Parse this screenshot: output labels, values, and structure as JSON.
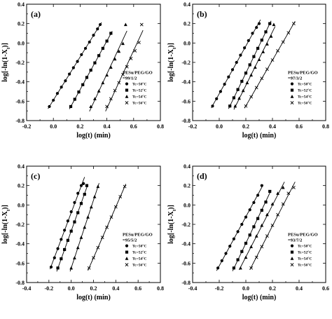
{
  "chart_data": [
    {
      "type": "line",
      "panel_label": "(a)",
      "xlabel": "log(t) (min)",
      "ylabel": "log[-ln(1-X_t)]",
      "xlim": [
        -0.2,
        0.8
      ],
      "ylim": [
        -0.8,
        0.4
      ],
      "xticks": [
        "-0.2",
        "0.0",
        "0.2",
        "0.4",
        "0.6",
        "0.8"
      ],
      "yticks": [
        "-0.8",
        "-0.6",
        "-0.4",
        "-0.2",
        "0.0",
        "0.2",
        "0.4"
      ],
      "legend": {
        "title_lines": [
          "PESu/PEG/GO",
          "=99/1/2"
        ],
        "placement": "right"
      },
      "series": [
        {
          "name": "Tc=50°C",
          "marker": "circle",
          "x": [
            -0.03,
            0.0,
            0.03,
            0.06,
            0.09,
            0.12,
            0.15,
            0.18,
            0.21,
            0.24,
            0.27,
            0.3,
            0.33,
            0.35
          ],
          "y": [
            -0.655,
            -0.59,
            -0.52,
            -0.455,
            -0.39,
            -0.32,
            -0.255,
            -0.19,
            -0.12,
            -0.055,
            0.01,
            0.08,
            0.145,
            0.19
          ]
        },
        {
          "name": "Tc=52°C",
          "marker": "square",
          "x": [
            0.13,
            0.16,
            0.19,
            0.22,
            0.25,
            0.28,
            0.31,
            0.34,
            0.37,
            0.4,
            0.43
          ],
          "y": [
            -0.655,
            -0.58,
            -0.505,
            -0.43,
            -0.355,
            -0.28,
            -0.205,
            -0.13,
            -0.055,
            0.02,
            0.1
          ]
        },
        {
          "name": "Tc=54°C",
          "marker": "triangle",
          "x": [
            0.28,
            0.31,
            0.34,
            0.37,
            0.4,
            0.43,
            0.46,
            0.49,
            0.52,
            0.54
          ],
          "y": [
            -0.655,
            -0.575,
            -0.495,
            -0.41,
            -0.33,
            -0.25,
            -0.165,
            -0.085,
            -0.005,
            0.19
          ]
        },
        {
          "name": "Tc=56°C",
          "marker": "cross",
          "x": [
            0.4,
            0.43,
            0.46,
            0.49,
            0.52,
            0.55,
            0.58,
            0.61,
            0.64,
            0.66
          ],
          "y": [
            -0.655,
            -0.575,
            -0.49,
            -0.41,
            -0.325,
            -0.245,
            -0.16,
            -0.08,
            0.005,
            0.19
          ]
        }
      ]
    },
    {
      "type": "line",
      "panel_label": "(b)",
      "xlabel": "log(t) (min)",
      "ylabel": "log[-ln(1-X_t)]",
      "xlim": [
        -0.2,
        0.8
      ],
      "ylim": [
        -0.8,
        0.4
      ],
      "xticks": [
        "-0.2",
        "0.0",
        "0.2",
        "0.4",
        "0.6",
        "0.8"
      ],
      "yticks": [
        "-0.8",
        "-0.6",
        "-0.4",
        "-0.2",
        "0.0",
        "0.2",
        "0.4"
      ],
      "legend": {
        "title_lines": [
          "PESu/PEG/GO",
          "=97/3/2"
        ],
        "placement": "right"
      },
      "series": [
        {
          "name": "Tc=50°C",
          "marker": "circle",
          "x": [
            -0.05,
            -0.02,
            0.01,
            0.04,
            0.07,
            0.1,
            0.13,
            0.16,
            0.19,
            0.22,
            0.25,
            0.28,
            0.3
          ],
          "y": [
            -0.65,
            -0.575,
            -0.5,
            -0.425,
            -0.35,
            -0.275,
            -0.2,
            -0.125,
            -0.05,
            0.025,
            0.1,
            0.16,
            0.2
          ]
        },
        {
          "name": "Tc=52°C",
          "marker": "square",
          "x": [
            0.08,
            0.11,
            0.14,
            0.17,
            0.2,
            0.23,
            0.26,
            0.29,
            0.32,
            0.35,
            0.38
          ],
          "y": [
            -0.65,
            -0.565,
            -0.48,
            -0.395,
            -0.31,
            -0.225,
            -0.14,
            -0.055,
            0.03,
            0.115,
            0.2
          ]
        },
        {
          "name": "Tc=54°C",
          "marker": "triangle",
          "x": [
            0.12,
            0.15,
            0.18,
            0.21,
            0.24,
            0.27,
            0.3,
            0.33,
            0.36,
            0.39,
            0.41
          ],
          "y": [
            -0.65,
            -0.57,
            -0.49,
            -0.41,
            -0.33,
            -0.25,
            -0.17,
            -0.09,
            -0.01,
            0.07,
            0.19
          ]
        },
        {
          "name": "Tc=56°C",
          "marker": "cross",
          "x": [
            0.2,
            0.24,
            0.28,
            0.32,
            0.36,
            0.4,
            0.44,
            0.48,
            0.52,
            0.56
          ],
          "y": [
            -0.65,
            -0.555,
            -0.46,
            -0.365,
            -0.27,
            -0.175,
            -0.08,
            0.01,
            0.105,
            0.2
          ]
        }
      ]
    },
    {
      "type": "line",
      "panel_label": "(c)",
      "xlabel": "log(t) (min)",
      "ylabel": "log[-ln(1-X_t)]",
      "xlim": [
        -0.4,
        0.8
      ],
      "ylim": [
        -0.8,
        0.4
      ],
      "xticks": [
        "-0.4",
        "-0.2",
        "0.0",
        "0.2",
        "0.4",
        "0.6",
        "0.8"
      ],
      "yticks": [
        "-0.8",
        "-0.6",
        "-0.4",
        "-0.2",
        "0.0",
        "0.2",
        "0.4"
      ],
      "legend": {
        "title_lines": [
          "PESu/PEG/GO",
          "=95/5/2"
        ],
        "placement": "right"
      },
      "series": [
        {
          "name": "Tc=50°C",
          "marker": "circle",
          "x": [
            -0.18,
            -0.15,
            -0.12,
            -0.09,
            -0.06,
            -0.03,
            0.0,
            0.03,
            0.06,
            0.09,
            0.11
          ],
          "y": [
            -0.64,
            -0.545,
            -0.45,
            -0.355,
            -0.26,
            -0.165,
            -0.07,
            0.025,
            0.12,
            0.2,
            0.22
          ]
        },
        {
          "name": "Tc=52°C",
          "marker": "square",
          "x": [
            -0.12,
            -0.09,
            -0.06,
            -0.03,
            0.0,
            0.03,
            0.06,
            0.09,
            0.12,
            0.14
          ],
          "y": [
            -0.65,
            -0.555,
            -0.46,
            -0.365,
            -0.27,
            -0.175,
            -0.08,
            0.015,
            0.11,
            0.2
          ]
        },
        {
          "name": "Tc=54°C",
          "marker": "triangle",
          "x": [
            0.0,
            0.03,
            0.06,
            0.09,
            0.12,
            0.15,
            0.18,
            0.21,
            0.24
          ],
          "y": [
            -0.65,
            -0.545,
            -0.44,
            -0.335,
            -0.23,
            -0.125,
            -0.02,
            0.085,
            0.19
          ]
        },
        {
          "name": "Tc=56°C",
          "marker": "cross",
          "x": [
            0.16,
            0.2,
            0.24,
            0.28,
            0.32,
            0.36,
            0.4,
            0.44,
            0.48
          ],
          "y": [
            -0.65,
            -0.545,
            -0.44,
            -0.335,
            -0.23,
            -0.125,
            -0.02,
            0.085,
            0.19
          ]
        }
      ]
    },
    {
      "type": "line",
      "panel_label": "(d)",
      "xlabel": "log(t) (min)",
      "ylabel": "log[-ln(1-X_t)]",
      "xlim": [
        -0.4,
        0.6
      ],
      "ylim": [
        -0.8,
        0.4
      ],
      "xticks": [
        "-0.4",
        "-0.2",
        "0.0",
        "0.2",
        "0.4",
        "0.6"
      ],
      "yticks": [
        "-0.8",
        "-0.6",
        "-0.4",
        "-0.2",
        "0.0",
        "0.2",
        "0.4"
      ],
      "legend": {
        "title_lines": [
          "PESu/PEG/GO",
          "=93/7/2"
        ],
        "placement": "right"
      },
      "series": [
        {
          "name": "Tc=50°C",
          "marker": "circle",
          "x": [
            -0.21,
            -0.18,
            -0.15,
            -0.12,
            -0.09,
            -0.06,
            -0.03,
            0.0,
            0.03,
            0.06,
            0.09,
            0.12
          ],
          "y": [
            -0.65,
            -0.575,
            -0.5,
            -0.425,
            -0.35,
            -0.275,
            -0.2,
            -0.125,
            -0.05,
            0.025,
            0.1,
            0.2
          ]
        },
        {
          "name": "Tc=52°C",
          "marker": "square",
          "x": [
            -0.09,
            -0.06,
            -0.03,
            0.0,
            0.03,
            0.06,
            0.09,
            0.12,
            0.15,
            0.18
          ],
          "y": [
            -0.65,
            -0.565,
            -0.48,
            -0.395,
            -0.31,
            -0.225,
            -0.14,
            -0.055,
            0.03,
            0.14
          ]
        },
        {
          "name": "Tc=54°C",
          "marker": "triangle",
          "x": [
            -0.04,
            0.0,
            0.04,
            0.08,
            0.12,
            0.16,
            0.2,
            0.24,
            0.28
          ],
          "y": [
            -0.65,
            -0.54,
            -0.43,
            -0.32,
            -0.21,
            -0.1,
            0.01,
            0.12,
            0.18
          ]
        },
        {
          "name": "Tc=56°C",
          "marker": "cross",
          "x": [
            0.04,
            0.08,
            0.12,
            0.16,
            0.2,
            0.24,
            0.28,
            0.32,
            0.36
          ],
          "y": [
            -0.65,
            -0.54,
            -0.43,
            -0.32,
            -0.21,
            -0.1,
            0.01,
            0.12,
            0.18
          ]
        }
      ]
    }
  ]
}
